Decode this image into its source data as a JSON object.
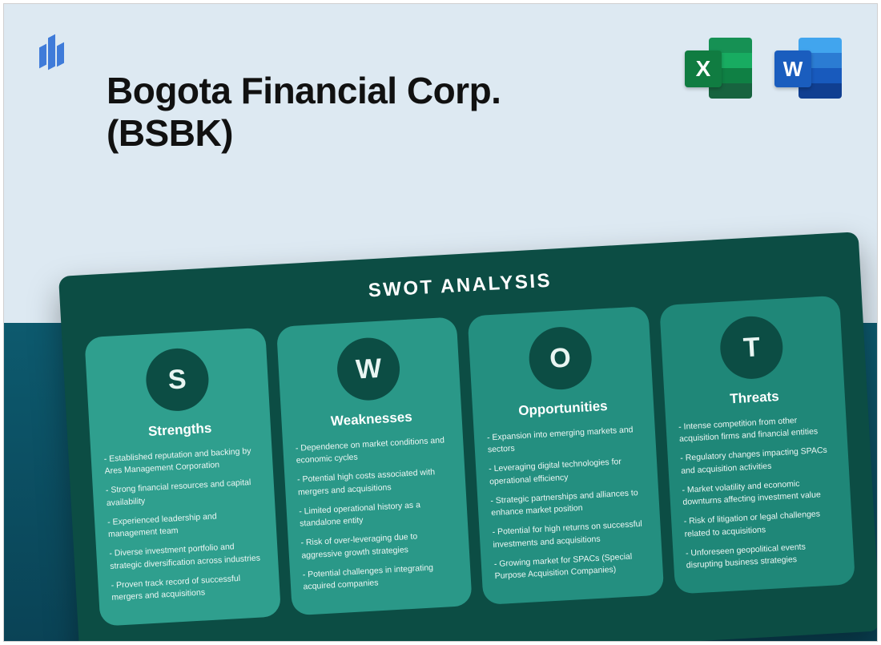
{
  "header": {
    "title_line1": "Bogota Financial Corp.",
    "title_line2": "(BSBK)",
    "logo_color": "#3f7bd9",
    "excel_letter": "X",
    "word_letter": "W",
    "excel_colors": [
      "#169154",
      "#18ac61",
      "#0f8044",
      "#17633f"
    ],
    "excel_badge_color": "#107c41",
    "word_colors": [
      "#41a5ee",
      "#2b7cd3",
      "#185abd",
      "#103f91"
    ],
    "word_badge_color": "#1a5dbe"
  },
  "layout": {
    "top_bg": "#dde9f2",
    "bottom_bg_top": "#0d5a6e",
    "bottom_bg_bottom": "#0a4356",
    "rotation_deg": -3.2
  },
  "swot": {
    "title": "SWOT ANALYSIS",
    "card_bg": "#0c4d44",
    "circle_bg": "#0c4d44",
    "columns": [
      {
        "letter": "S",
        "heading": "Strengths",
        "bg": "#2f9f8e",
        "items": [
          "Established reputation and backing by Ares Management Corporation",
          "Strong financial resources and capital availability",
          "Experienced leadership and management team",
          "Diverse investment portfolio and strategic diversification across industries",
          "Proven track record of successful mergers and acquisitions"
        ]
      },
      {
        "letter": "W",
        "heading": "Weaknesses",
        "bg": "#2a9888",
        "items": [
          "Dependence on market conditions and economic cycles",
          "Potential high costs associated with mergers and acquisitions",
          "Limited operational history as a standalone entity",
          "Risk of over-leveraging due to aggressive growth strategies",
          "Potential challenges in integrating acquired companies"
        ]
      },
      {
        "letter": "O",
        "heading": "Opportunities",
        "bg": "#248f80",
        "items": [
          "Expansion into emerging markets and sectors",
          "Leveraging digital technologies for operational efficiency",
          "Strategic partnerships and alliances to enhance market position",
          "Potential for high returns on successful investments and acquisitions",
          "Growing market for SPACs (Special Purpose Acquisition Companies)"
        ]
      },
      {
        "letter": "T",
        "heading": "Threats",
        "bg": "#1f8778",
        "items": [
          "Intense competition from other acquisition firms and financial entities",
          "Regulatory changes impacting SPACs and acquisition activities",
          "Market volatility and economic downturns affecting investment value",
          "Risk of litigation or legal challenges related to acquisitions",
          "Unforeseen geopolitical events disrupting business strategies"
        ]
      }
    ]
  }
}
